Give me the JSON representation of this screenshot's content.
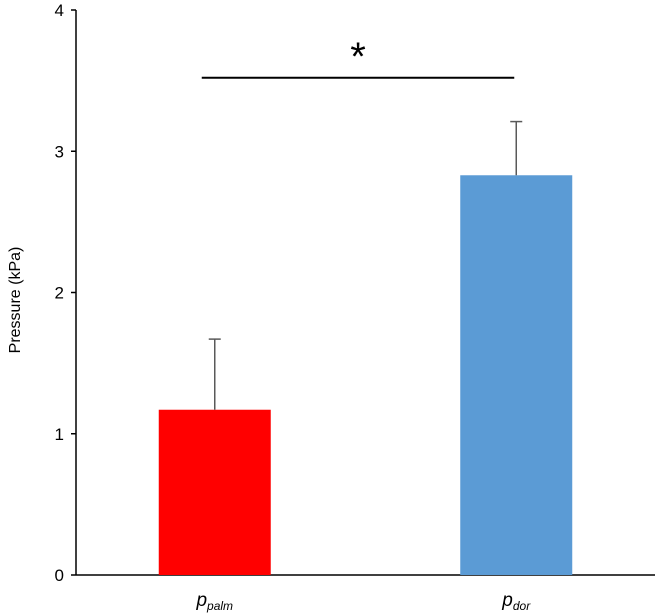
{
  "chart_data": {
    "type": "bar",
    "title": "",
    "xlabel": "",
    "ylabel": "Pressure (kPa)",
    "ylim": [
      0,
      4
    ],
    "yticks": [
      0,
      1,
      2,
      3,
      4
    ],
    "grid": false,
    "categories": [
      {
        "base": "p",
        "sub": "palm"
      },
      {
        "base": "p",
        "sub": "dor"
      }
    ],
    "values": [
      1.17,
      2.83
    ],
    "errors": [
      0.5,
      0.38
    ],
    "colors": [
      "#ff0000",
      "#5b9bd5"
    ],
    "significance": {
      "between": [
        0,
        1
      ],
      "y": 3.52,
      "label": "*"
    }
  }
}
